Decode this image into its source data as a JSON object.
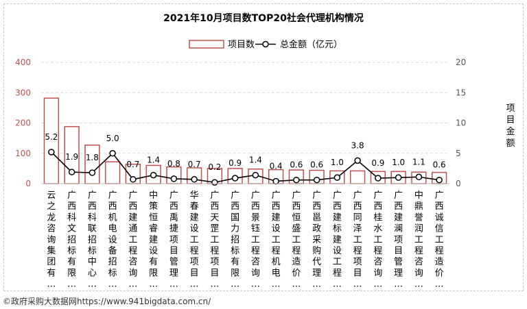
{
  "chart_data": {
    "type": "bar",
    "title": "2021年10月项目数TOP20社会代理机构情况",
    "legend": {
      "placement": "top-center",
      "items": [
        {
          "label": "项目数",
          "kind": "bar"
        },
        {
          "label": "总金额（亿元）",
          "kind": "line"
        }
      ]
    },
    "categories": [
      "云之龙咨询集团有…",
      "广西科文招标有限…",
      "广西科联招标中心…",
      "广西机电设备招标…",
      "广西建通工程咨询…",
      "中策恒睿建设有限…",
      "广西禹捷项目管理…",
      "华春建设工程项目…",
      "广西天罡工程项目…",
      "广西国力招标有限…",
      "广西景钰工程咨询…",
      "广西建设工程机电…",
      "广西恒盛工程造价…",
      "广西邕政采购代理…",
      "广西建标建设工程…",
      "广西同泽工程项目…",
      "广西桂水工程咨询…",
      "广西建澜项目管理…",
      "中鼎誉润工程咨询…",
      "广西诚信工程造价…"
    ],
    "series": [
      {
        "name": "项目数",
        "type": "bar",
        "axis": "left",
        "color": "#c0504d",
        "values": [
          282,
          188,
          127,
          72,
          64,
          60,
          55,
          52,
          50,
          50,
          48,
          46,
          45,
          44,
          42,
          42,
          40,
          40,
          38,
          37
        ]
      },
      {
        "name": "总金额（亿元）",
        "type": "line",
        "axis": "right",
        "color": "#000000",
        "values": [
          5.2,
          1.9,
          1.8,
          5.0,
          0.7,
          1.4,
          0.8,
          0.7,
          0.2,
          0.9,
          1.4,
          0.4,
          0.6,
          0.6,
          1.0,
          3.8,
          0.9,
          1.0,
          1.1,
          0.6
        ],
        "labels": [
          "5.2",
          "1.9",
          "1.8",
          "5.0",
          "0.7",
          "1.4",
          "0.8",
          "0.7",
          "0.2",
          "0.9",
          "1.4",
          "0.4",
          "0.6",
          "0.6",
          "1.0",
          "3.8",
          "0.9",
          "1.0",
          "1.1",
          "0.6"
        ]
      }
    ],
    "y_left": {
      "ylim": [
        0,
        400
      ],
      "ticks": [
        "0",
        "100",
        "200",
        "300",
        "400"
      ],
      "color": "#c0504d"
    },
    "y_right": {
      "ylim": [
        0,
        20
      ],
      "ticks": [
        "0",
        "5",
        "10",
        "15",
        "20"
      ],
      "label": "项目金额"
    },
    "grid": "horizontal-dashed"
  },
  "footer": "©政府采购大数据网https://www.941bigdata.com.cn/"
}
